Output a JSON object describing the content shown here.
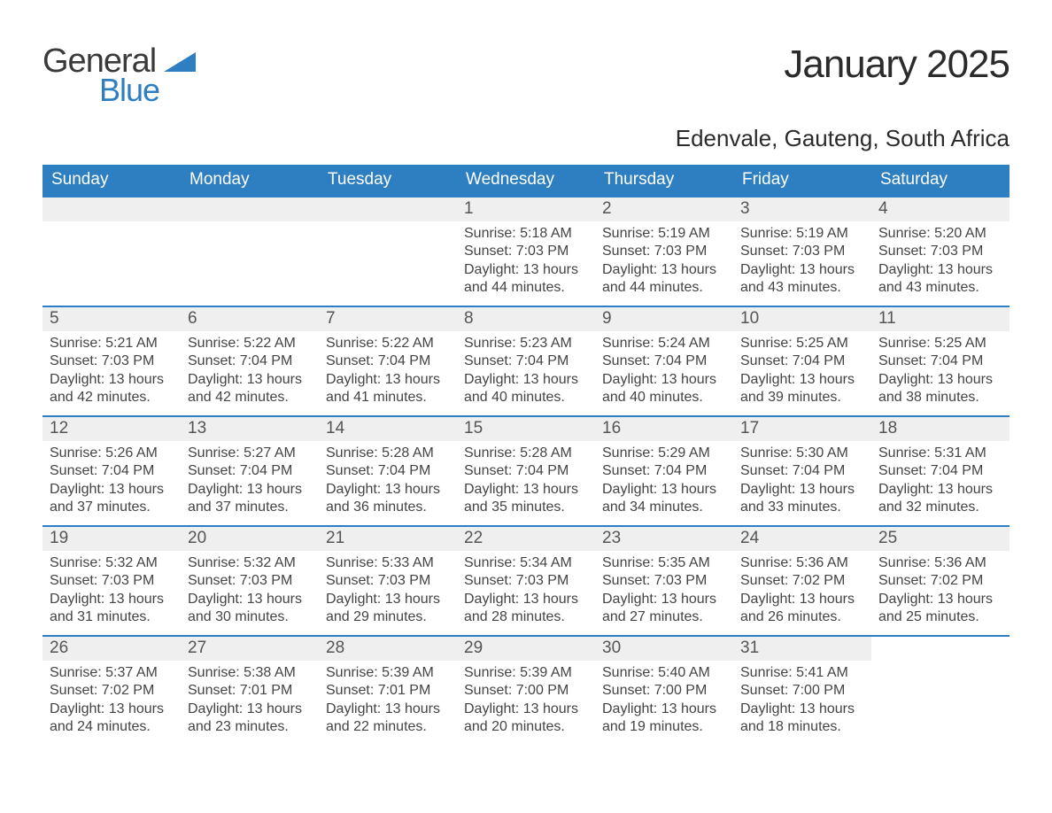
{
  "colors": {
    "brand_blue": "#2d7fc1",
    "text_dark": "#2b2b2b",
    "text_body": "#444444",
    "daynum_bg": "#efefef",
    "background": "#ffffff",
    "row_border": "#2d7fc1"
  },
  "typography": {
    "title_fontsize": 44,
    "subtitle_fontsize": 26,
    "dow_fontsize": 19,
    "daynum_fontsize": 19,
    "body_fontsize": 16,
    "font_family": "Helvetica Neue"
  },
  "logo": {
    "line1": "General",
    "line2": "Blue",
    "line1_color": "#3a3a3a",
    "line2_color": "#2d7fc1",
    "wedge_color": "#2d7fc1"
  },
  "title": "January 2025",
  "subtitle": "Edenvale, Gauteng, South Africa",
  "days_of_week": [
    "Sunday",
    "Monday",
    "Tuesday",
    "Wednesday",
    "Thursday",
    "Friday",
    "Saturday"
  ],
  "layout": {
    "columns": 7,
    "blank_leading_cells": 3,
    "weeks": 5
  },
  "days": [
    {
      "n": "1",
      "sunrise": "Sunrise: 5:18 AM",
      "sunset": "Sunset: 7:03 PM",
      "daylight": "Daylight: 13 hours and 44 minutes."
    },
    {
      "n": "2",
      "sunrise": "Sunrise: 5:19 AM",
      "sunset": "Sunset: 7:03 PM",
      "daylight": "Daylight: 13 hours and 44 minutes."
    },
    {
      "n": "3",
      "sunrise": "Sunrise: 5:19 AM",
      "sunset": "Sunset: 7:03 PM",
      "daylight": "Daylight: 13 hours and 43 minutes."
    },
    {
      "n": "4",
      "sunrise": "Sunrise: 5:20 AM",
      "sunset": "Sunset: 7:03 PM",
      "daylight": "Daylight: 13 hours and 43 minutes."
    },
    {
      "n": "5",
      "sunrise": "Sunrise: 5:21 AM",
      "sunset": "Sunset: 7:03 PM",
      "daylight": "Daylight: 13 hours and 42 minutes."
    },
    {
      "n": "6",
      "sunrise": "Sunrise: 5:22 AM",
      "sunset": "Sunset: 7:04 PM",
      "daylight": "Daylight: 13 hours and 42 minutes."
    },
    {
      "n": "7",
      "sunrise": "Sunrise: 5:22 AM",
      "sunset": "Sunset: 7:04 PM",
      "daylight": "Daylight: 13 hours and 41 minutes."
    },
    {
      "n": "8",
      "sunrise": "Sunrise: 5:23 AM",
      "sunset": "Sunset: 7:04 PM",
      "daylight": "Daylight: 13 hours and 40 minutes."
    },
    {
      "n": "9",
      "sunrise": "Sunrise: 5:24 AM",
      "sunset": "Sunset: 7:04 PM",
      "daylight": "Daylight: 13 hours and 40 minutes."
    },
    {
      "n": "10",
      "sunrise": "Sunrise: 5:25 AM",
      "sunset": "Sunset: 7:04 PM",
      "daylight": "Daylight: 13 hours and 39 minutes."
    },
    {
      "n": "11",
      "sunrise": "Sunrise: 5:25 AM",
      "sunset": "Sunset: 7:04 PM",
      "daylight": "Daylight: 13 hours and 38 minutes."
    },
    {
      "n": "12",
      "sunrise": "Sunrise: 5:26 AM",
      "sunset": "Sunset: 7:04 PM",
      "daylight": "Daylight: 13 hours and 37 minutes."
    },
    {
      "n": "13",
      "sunrise": "Sunrise: 5:27 AM",
      "sunset": "Sunset: 7:04 PM",
      "daylight": "Daylight: 13 hours and 37 minutes."
    },
    {
      "n": "14",
      "sunrise": "Sunrise: 5:28 AM",
      "sunset": "Sunset: 7:04 PM",
      "daylight": "Daylight: 13 hours and 36 minutes."
    },
    {
      "n": "15",
      "sunrise": "Sunrise: 5:28 AM",
      "sunset": "Sunset: 7:04 PM",
      "daylight": "Daylight: 13 hours and 35 minutes."
    },
    {
      "n": "16",
      "sunrise": "Sunrise: 5:29 AM",
      "sunset": "Sunset: 7:04 PM",
      "daylight": "Daylight: 13 hours and 34 minutes."
    },
    {
      "n": "17",
      "sunrise": "Sunrise: 5:30 AM",
      "sunset": "Sunset: 7:04 PM",
      "daylight": "Daylight: 13 hours and 33 minutes."
    },
    {
      "n": "18",
      "sunrise": "Sunrise: 5:31 AM",
      "sunset": "Sunset: 7:04 PM",
      "daylight": "Daylight: 13 hours and 32 minutes."
    },
    {
      "n": "19",
      "sunrise": "Sunrise: 5:32 AM",
      "sunset": "Sunset: 7:03 PM",
      "daylight": "Daylight: 13 hours and 31 minutes."
    },
    {
      "n": "20",
      "sunrise": "Sunrise: 5:32 AM",
      "sunset": "Sunset: 7:03 PM",
      "daylight": "Daylight: 13 hours and 30 minutes."
    },
    {
      "n": "21",
      "sunrise": "Sunrise: 5:33 AM",
      "sunset": "Sunset: 7:03 PM",
      "daylight": "Daylight: 13 hours and 29 minutes."
    },
    {
      "n": "22",
      "sunrise": "Sunrise: 5:34 AM",
      "sunset": "Sunset: 7:03 PM",
      "daylight": "Daylight: 13 hours and 28 minutes."
    },
    {
      "n": "23",
      "sunrise": "Sunrise: 5:35 AM",
      "sunset": "Sunset: 7:03 PM",
      "daylight": "Daylight: 13 hours and 27 minutes."
    },
    {
      "n": "24",
      "sunrise": "Sunrise: 5:36 AM",
      "sunset": "Sunset: 7:02 PM",
      "daylight": "Daylight: 13 hours and 26 minutes."
    },
    {
      "n": "25",
      "sunrise": "Sunrise: 5:36 AM",
      "sunset": "Sunset: 7:02 PM",
      "daylight": "Daylight: 13 hours and 25 minutes."
    },
    {
      "n": "26",
      "sunrise": "Sunrise: 5:37 AM",
      "sunset": "Sunset: 7:02 PM",
      "daylight": "Daylight: 13 hours and 24 minutes."
    },
    {
      "n": "27",
      "sunrise": "Sunrise: 5:38 AM",
      "sunset": "Sunset: 7:01 PM",
      "daylight": "Daylight: 13 hours and 23 minutes."
    },
    {
      "n": "28",
      "sunrise": "Sunrise: 5:39 AM",
      "sunset": "Sunset: 7:01 PM",
      "daylight": "Daylight: 13 hours and 22 minutes."
    },
    {
      "n": "29",
      "sunrise": "Sunrise: 5:39 AM",
      "sunset": "Sunset: 7:00 PM",
      "daylight": "Daylight: 13 hours and 20 minutes."
    },
    {
      "n": "30",
      "sunrise": "Sunrise: 5:40 AM",
      "sunset": "Sunset: 7:00 PM",
      "daylight": "Daylight: 13 hours and 19 minutes."
    },
    {
      "n": "31",
      "sunrise": "Sunrise: 5:41 AM",
      "sunset": "Sunset: 7:00 PM",
      "daylight": "Daylight: 13 hours and 18 minutes."
    }
  ]
}
